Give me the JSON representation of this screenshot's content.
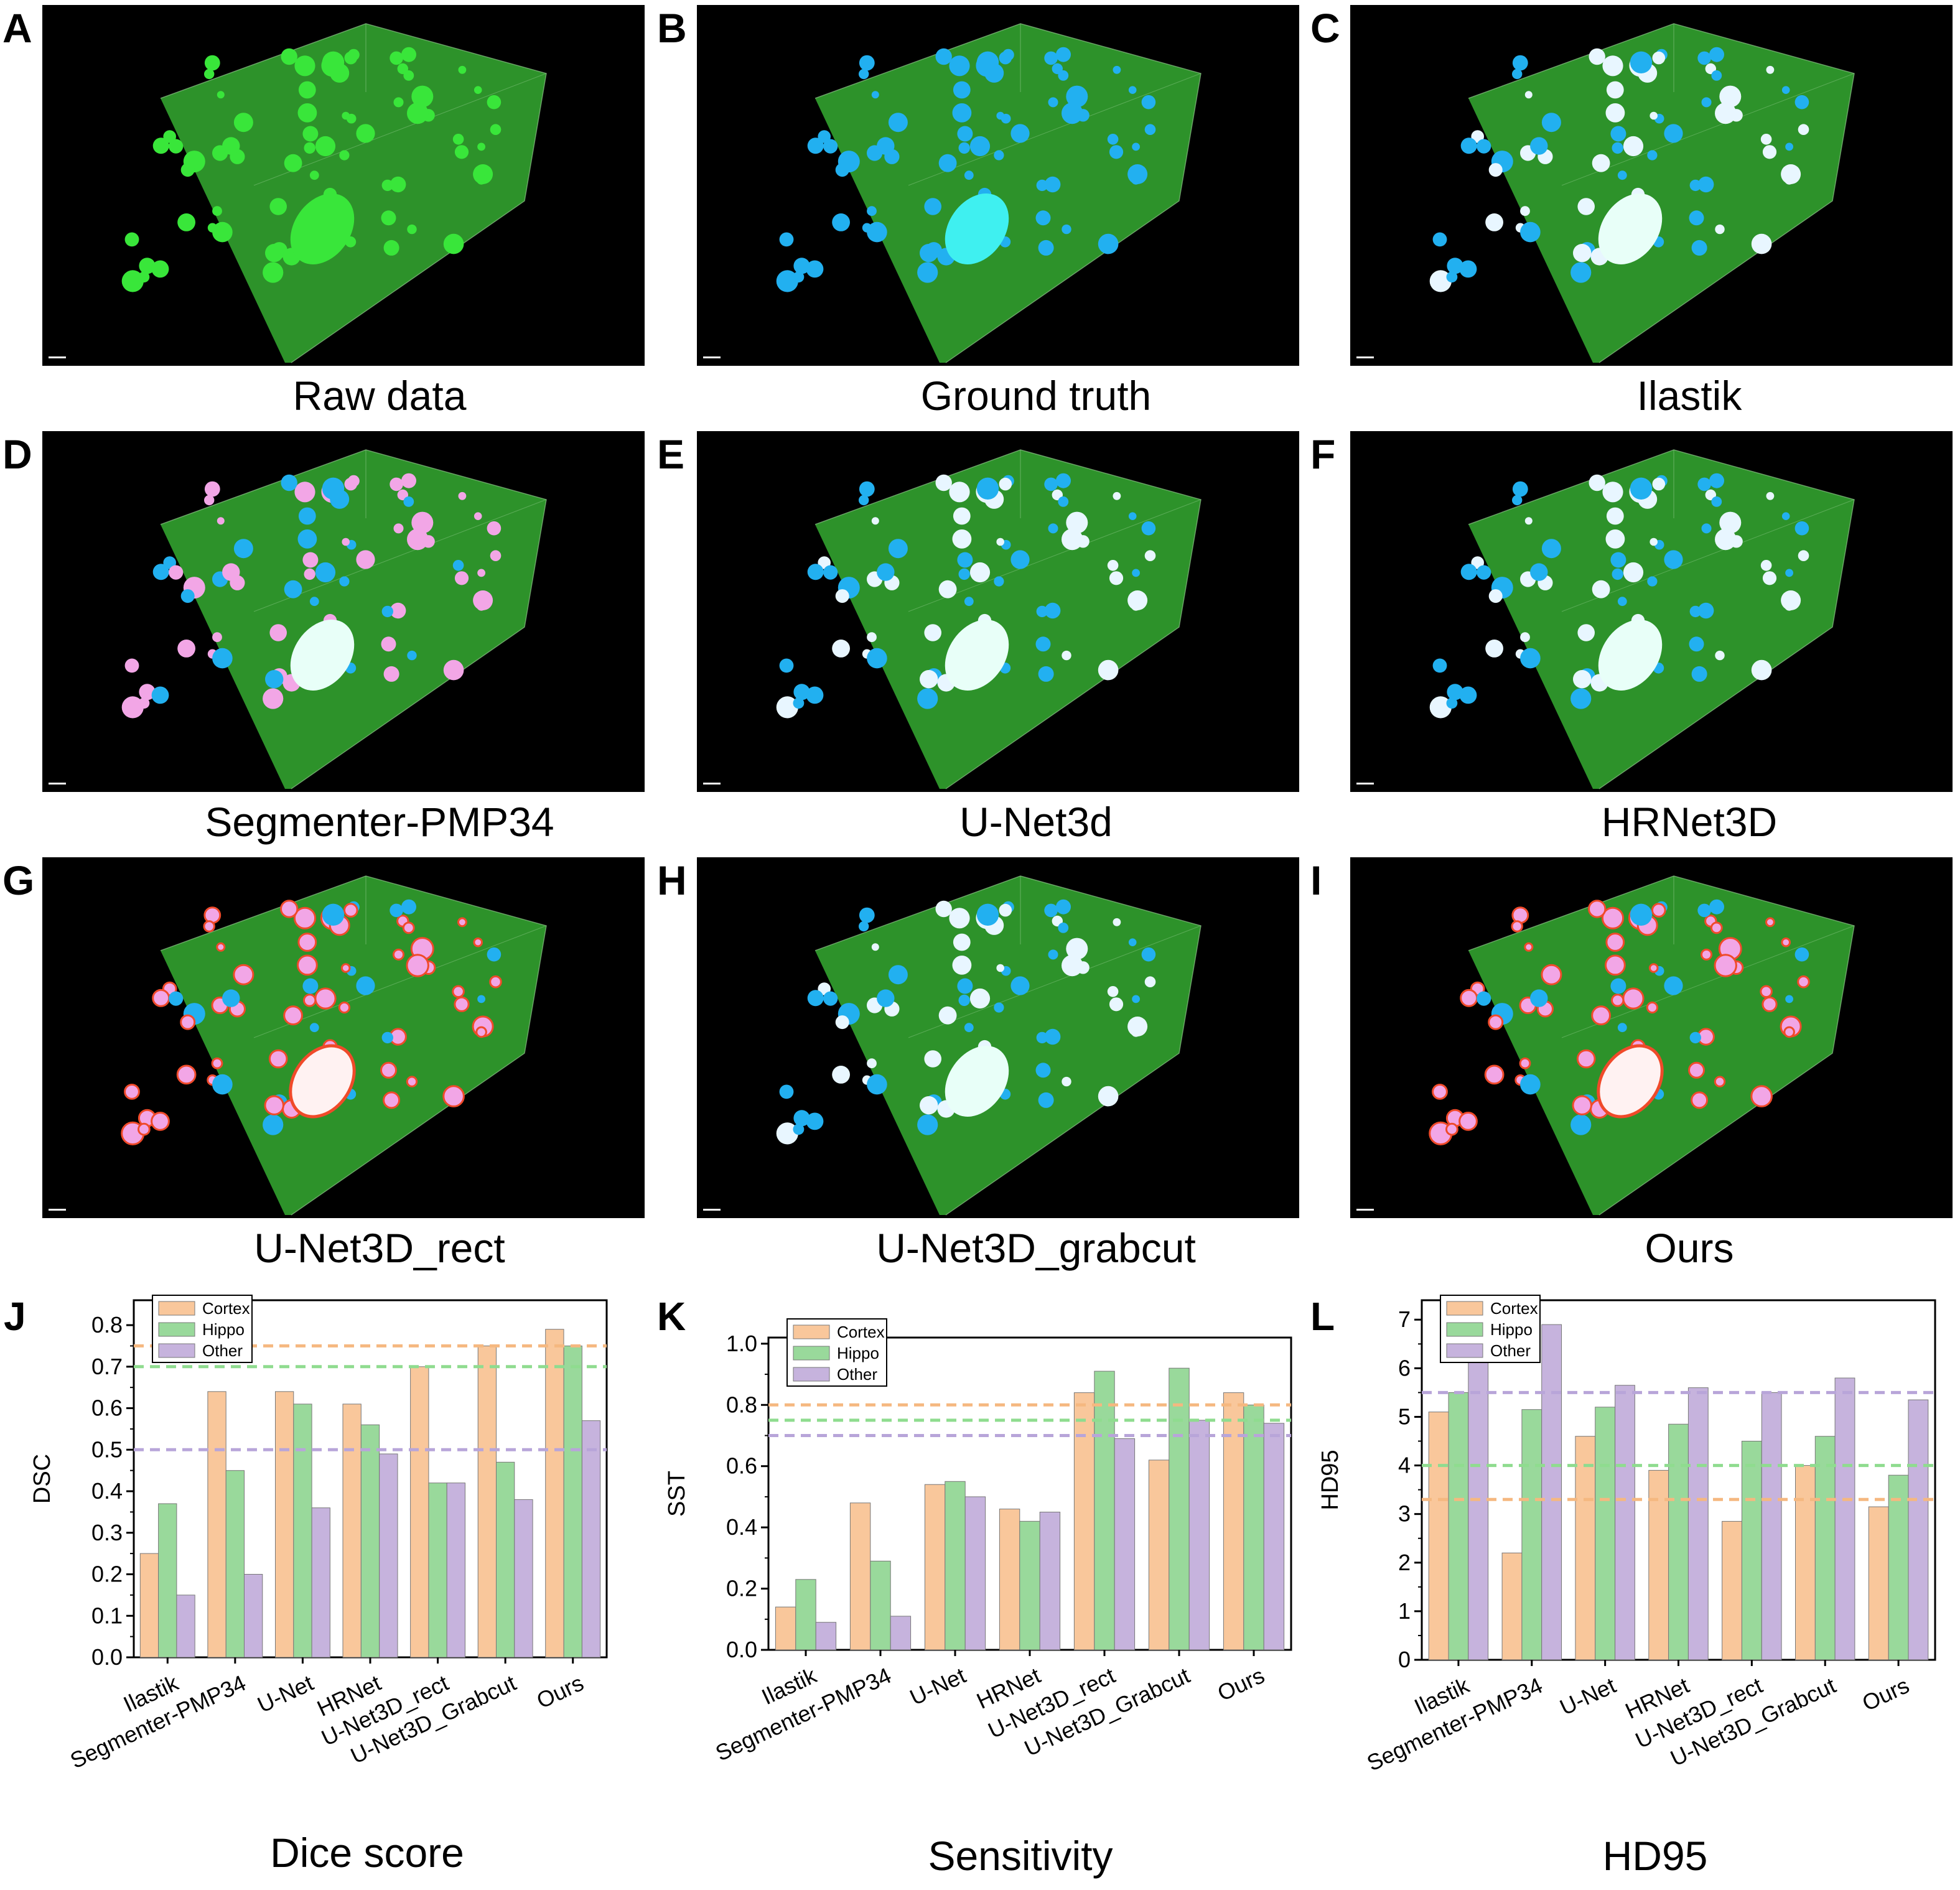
{
  "panels": [
    {
      "letter": "A",
      "caption": "Raw data",
      "overlay": "none"
    },
    {
      "letter": "B",
      "caption": "Ground truth",
      "overlay": "blue"
    },
    {
      "letter": "C",
      "caption": "Ilastik",
      "overlay": "mixed-light"
    },
    {
      "letter": "D",
      "caption": "Segmenter-PMP34",
      "overlay": "pink"
    },
    {
      "letter": "E",
      "caption": "U-Net3d",
      "overlay": "mixed-light"
    },
    {
      "letter": "F",
      "caption": "HRNet3D",
      "overlay": "mixed-light"
    },
    {
      "letter": "G",
      "caption": "U-Net3D_rect",
      "overlay": "red"
    },
    {
      "letter": "H",
      "caption": "U-Net3D_grabcut",
      "overlay": "mixed-light"
    },
    {
      "letter": "I",
      "caption": "Ours",
      "overlay": "red"
    }
  ],
  "colors": {
    "cortex": "#f9c79b",
    "hippo": "#99d99b",
    "other": "#c6b3dd",
    "cortex_line": "#f5b880",
    "hippo_line": "#8fdc8f",
    "other_line": "#b8a5d9",
    "volume_green": "#2f9a2c",
    "gt_blue": "#22b0f0",
    "seg_pink": "#f2a6e6",
    "seg_red": "#f04a2a"
  },
  "chart_data": [
    {
      "letter": "J",
      "type": "bar",
      "title": "Dice score",
      "ylabel": "DSC",
      "categories": [
        "Ilastik",
        "Segmenter-PMP34",
        "U-Net",
        "HRNet",
        "U-Net3D_rect",
        "U-Net3D_Grabcut",
        "Ours"
      ],
      "series": [
        {
          "name": "Cortex",
          "values": [
            0.25,
            0.64,
            0.64,
            0.61,
            0.7,
            0.75,
            0.79
          ]
        },
        {
          "name": "Hippo",
          "values": [
            0.37,
            0.45,
            0.61,
            0.56,
            0.42,
            0.47,
            0.75
          ]
        },
        {
          "name": "Other",
          "values": [
            0.15,
            0.2,
            0.36,
            0.49,
            0.42,
            0.38,
            0.57
          ]
        }
      ],
      "ylim": [
        0,
        0.86
      ],
      "yticks": [
        "0.0",
        "0.1",
        "0.2",
        "0.3",
        "0.4",
        "0.5",
        "0.6",
        "0.7",
        "0.8"
      ],
      "ytick_values": [
        0,
        0.1,
        0.2,
        0.3,
        0.4,
        0.5,
        0.6,
        0.7,
        0.8
      ],
      "reference_lines": [
        {
          "series": "Cortex",
          "value": 0.75
        },
        {
          "series": "Hippo",
          "value": 0.7
        },
        {
          "series": "Other",
          "value": 0.5
        }
      ],
      "legend": "top-left",
      "grid": false
    },
    {
      "letter": "K",
      "type": "bar",
      "title": "Sensitivity",
      "ylabel": "SST",
      "categories": [
        "Ilastik",
        "Segmenter-PMP34",
        "U-Net",
        "HRNet",
        "U-Net3D_rect",
        "U-Net3D_Grabcut",
        "Ours"
      ],
      "series": [
        {
          "name": "Cortex",
          "values": [
            0.14,
            0.48,
            0.54,
            0.46,
            0.84,
            0.62,
            0.84
          ]
        },
        {
          "name": "Hippo",
          "values": [
            0.23,
            0.29,
            0.55,
            0.42,
            0.91,
            0.92,
            0.8
          ]
        },
        {
          "name": "Other",
          "values": [
            0.09,
            0.11,
            0.5,
            0.45,
            0.69,
            0.75,
            0.74
          ]
        }
      ],
      "ylim": [
        0,
        1.02
      ],
      "yticks": [
        "0.0",
        "0.2",
        "0.4",
        "0.6",
        "0.8",
        "1.0"
      ],
      "ytick_values": [
        0,
        0.2,
        0.4,
        0.6,
        0.8,
        1.0
      ],
      "reference_lines": [
        {
          "series": "Cortex",
          "value": 0.8
        },
        {
          "series": "Hippo",
          "value": 0.75
        },
        {
          "series": "Other",
          "value": 0.7
        }
      ],
      "legend": "top-left",
      "grid": false
    },
    {
      "letter": "L",
      "type": "bar",
      "title": "HD95",
      "ylabel": "HD95",
      "categories": [
        "Ilastik",
        "Segmenter-PMP34",
        "U-Net",
        "HRNet",
        "U-Net3D_rect",
        "U-Net3D_Grabcut",
        "Ours"
      ],
      "series": [
        {
          "name": "Cortex",
          "values": [
            5.1,
            2.2,
            4.6,
            3.9,
            2.85,
            4.0,
            3.15
          ]
        },
        {
          "name": "Hippo",
          "values": [
            5.5,
            5.15,
            5.2,
            4.85,
            4.5,
            4.6,
            3.8
          ]
        },
        {
          "name": "Other",
          "values": [
            6.75,
            6.9,
            5.65,
            5.6,
            5.5,
            5.8,
            5.35
          ]
        }
      ],
      "ylim": [
        0,
        7.4
      ],
      "yticks": [
        "0",
        "1",
        "2",
        "3",
        "4",
        "5",
        "6",
        "7"
      ],
      "ytick_values": [
        0,
        1,
        2,
        3,
        4,
        5,
        6,
        7
      ],
      "reference_lines": [
        {
          "series": "Cortex",
          "value": 3.3
        },
        {
          "series": "Hippo",
          "value": 4.0
        },
        {
          "series": "Other",
          "value": 5.5
        }
      ],
      "legend": "top-left",
      "grid": false
    }
  ]
}
